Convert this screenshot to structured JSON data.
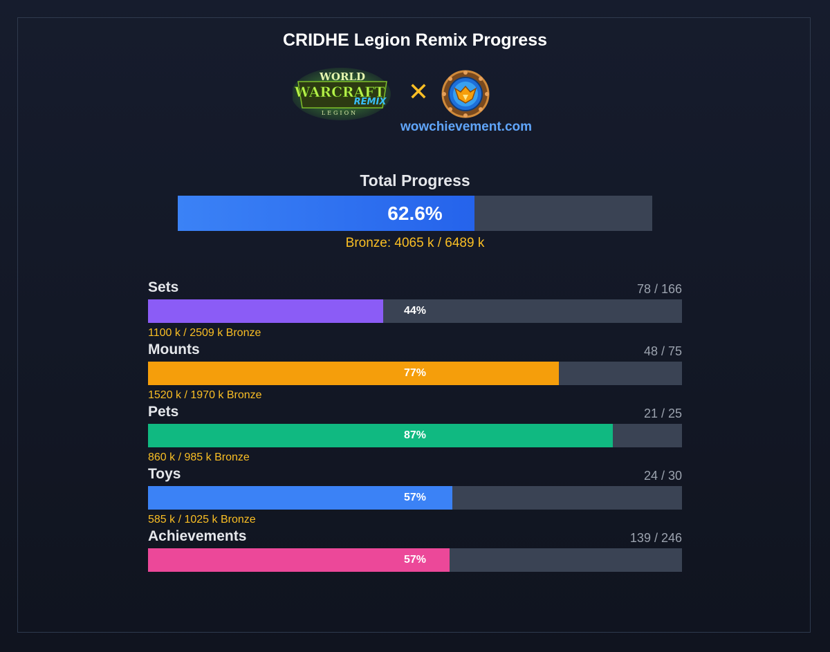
{
  "title": "CRIDHE Legion Remix Progress",
  "cross_symbol": "✕",
  "site": "wowchievement.com",
  "logos": {
    "wow_lines": [
      "WORLD",
      "WARCRAFT",
      "REMIX",
      "LEGION"
    ]
  },
  "total": {
    "heading": "Total Progress",
    "percent_label": "62.6%",
    "fraction": 0.626,
    "bronze_text": "Bronze: 4065 k / 6489 k",
    "fill_color": "#3b82f6"
  },
  "categories": [
    {
      "name": "Sets",
      "count": "78 / 166",
      "percent_label": "44%",
      "fraction": 0.44,
      "color": "#8b5cf6",
      "bronze": "1100 k / 2509 k Bronze"
    },
    {
      "name": "Mounts",
      "count": "48 / 75",
      "percent_label": "77%",
      "fraction": 0.77,
      "color": "#f59e0b",
      "bronze": "1520 k / 1970 k Bronze"
    },
    {
      "name": "Pets",
      "count": "21 / 25",
      "percent_label": "87%",
      "fraction": 0.87,
      "color": "#10b981",
      "bronze": "860 k / 985 k Bronze"
    },
    {
      "name": "Toys",
      "count": "24 / 30",
      "percent_label": "57%",
      "fraction": 0.57,
      "color": "#3b82f6",
      "bronze": "585 k / 1025 k Bronze"
    },
    {
      "name": "Achievements",
      "count": "139 / 246",
      "percent_label": "57%",
      "fraction": 0.565,
      "color": "#ec4899",
      "bronze": ""
    }
  ],
  "colors": {
    "bar_track": "#3a4354",
    "bronze_text": "#fbbf24",
    "link": "#60a5fa"
  }
}
